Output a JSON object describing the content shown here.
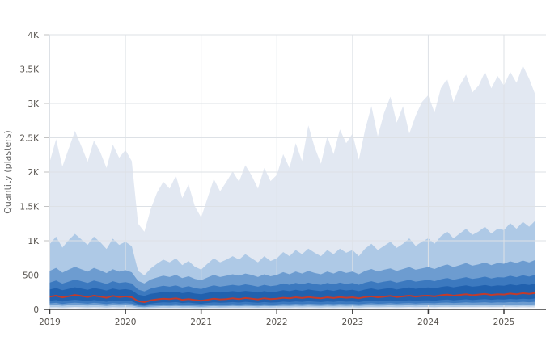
{
  "axes": {
    "y_title": "Quantity (plasters)",
    "y_ticks": [
      "4K",
      "3.5K",
      "3K",
      "2.5K",
      "2K",
      "1.5K",
      "1K",
      "500",
      "0"
    ],
    "y_tick_values": [
      4000,
      3500,
      3000,
      2500,
      2000,
      1500,
      1000,
      500,
      0
    ],
    "x_ticks": [
      "2019",
      "2020",
      "2021",
      "2022",
      "2023",
      "2024",
      "2025"
    ],
    "x_tick_values": [
      2019,
      2020,
      2021,
      2022,
      2023,
      2024,
      2025
    ]
  },
  "colors": {
    "band_outer": "#e2e8f2",
    "band_2": "#aec9e6",
    "band_3": "#6d9cd0",
    "band_4": "#3c79bf",
    "band_inner": "#2161ae",
    "median": "#c23b2c",
    "gridline": "#dde1e6",
    "axis": "#3a3a3a",
    "tick_text": "#55514c",
    "axis_title_text": "#666666"
  },
  "chart_data": {
    "type": "area",
    "title": "",
    "xlabel": "",
    "ylabel": "Quantity (plasters)",
    "ylim": [
      0,
      4000
    ],
    "x_range": {
      "start": "2019-01",
      "end": "2025-06",
      "step": "monthly",
      "count": 78
    },
    "legend": "none",
    "grid": true,
    "series": [
      {
        "name": "band-outer",
        "kind": "band",
        "layer": "back",
        "color": "#e2e8f2",
        "top": [
          2150,
          2480,
          2080,
          2340,
          2600,
          2380,
          2150,
          2460,
          2290,
          2060,
          2400,
          2210,
          2320,
          2160,
          1250,
          1130,
          1460,
          1700,
          1860,
          1760,
          1950,
          1620,
          1820,
          1500,
          1340,
          1620,
          1900,
          1720,
          1860,
          2010,
          1860,
          2100,
          1950,
          1760,
          2060,
          1870,
          1960,
          2260,
          2060,
          2420,
          2160,
          2680,
          2360,
          2120,
          2520,
          2260,
          2620,
          2420,
          2560,
          2180,
          2620,
          2960,
          2520,
          2860,
          3100,
          2720,
          2960,
          2560,
          2820,
          3020,
          3120,
          2870,
          3220,
          3360,
          3020,
          3260,
          3420,
          3160,
          3260,
          3460,
          3220,
          3400,
          3260,
          3460,
          3300,
          3550,
          3360,
          3120
        ],
        "bottom": [
          12,
          15,
          10,
          14,
          18,
          13,
          11,
          16,
          12,
          9,
          15,
          11,
          13,
          11,
          6,
          5,
          8,
          10,
          11,
          10,
          12,
          9,
          11,
          8,
          7,
          9,
          11,
          10,
          11,
          12,
          11,
          13,
          12,
          10,
          12,
          11,
          11,
          13,
          12,
          14,
          12,
          15,
          13,
          12,
          14,
          12,
          15,
          13,
          14,
          12,
          15,
          16,
          14,
          15,
          17,
          15,
          16,
          18,
          15,
          17,
          18,
          16,
          19,
          20,
          18,
          19,
          21,
          19,
          20,
          22,
          19,
          21,
          20,
          22,
          21,
          23,
          21,
          24
        ]
      },
      {
        "name": "band-2",
        "kind": "band",
        "layer": "back",
        "color": "#aec9e6",
        "top": [
          950,
          1060,
          900,
          1010,
          1100,
          1020,
          940,
          1060,
          980,
          880,
          1030,
          940,
          985,
          920,
          560,
          495,
          595,
          665,
          725,
          685,
          745,
          645,
          705,
          620,
          580,
          665,
          745,
          685,
          725,
          775,
          725,
          805,
          745,
          685,
          775,
          705,
          745,
          835,
          775,
          865,
          805,
          885,
          825,
          775,
          865,
          805,
          885,
          825,
          865,
          775,
          885,
          955,
          865,
          925,
          985,
          895,
          955,
          1035,
          925,
          985,
          1035,
          955,
          1065,
          1135,
          1035,
          1105,
          1175,
          1085,
          1135,
          1205,
          1105,
          1175,
          1155,
          1255,
          1175,
          1275,
          1205,
          1295
        ],
        "bottom": [
          30,
          33,
          28,
          31,
          35,
          32,
          29,
          33,
          30,
          27,
          32,
          29,
          31,
          29,
          19,
          17,
          21,
          23,
          25,
          24,
          26,
          22,
          24,
          21,
          20,
          23,
          25,
          24,
          25,
          27,
          25,
          28,
          26,
          24,
          27,
          25,
          26,
          28,
          27,
          30,
          28,
          31,
          29,
          27,
          30,
          28,
          31,
          29,
          30,
          27,
          31,
          33,
          30,
          32,
          34,
          31,
          33,
          35,
          32,
          34,
          35,
          33,
          36,
          38,
          35,
          37,
          39,
          36,
          38,
          40,
          37,
          39,
          38,
          41,
          39,
          42,
          40,
          43
        ]
      },
      {
        "name": "band-3",
        "kind": "band",
        "layer": "front",
        "color": "#6d9cd0",
        "top": [
          560,
          605,
          535,
          580,
          620,
          585,
          550,
          605,
          570,
          528,
          585,
          550,
          572,
          540,
          415,
          378,
          435,
          465,
          492,
          472,
          502,
          455,
          482,
          443,
          425,
          465,
          502,
          472,
          492,
          512,
          492,
          522,
          502,
          472,
          512,
          482,
          502,
          542,
          512,
          552,
          522,
          560,
          530,
          512,
          552,
          522,
          560,
          530,
          552,
          512,
          560,
          588,
          552,
          578,
          598,
          560,
          588,
          616,
          578,
          598,
          616,
          588,
          626,
          655,
          616,
          645,
          675,
          636,
          655,
          683,
          645,
          675,
          665,
          700,
          675,
          712,
          683,
          722
        ],
        "bottom": [
          58,
          63,
          53,
          60,
          65,
          60,
          55,
          63,
          58,
          51,
          60,
          55,
          59,
          55,
          36,
          32,
          40,
          44,
          48,
          46,
          49,
          43,
          46,
          42,
          38,
          43,
          48,
          45,
          46,
          49,
          46,
          51,
          48,
          45,
          49,
          46,
          48,
          52,
          49,
          54,
          51,
          55,
          52,
          49,
          54,
          51,
          55,
          52,
          54,
          49,
          55,
          58,
          54,
          57,
          60,
          55,
          58,
          61,
          57,
          60,
          61,
          58,
          63,
          66,
          61,
          64,
          68,
          63,
          66,
          69,
          64,
          68,
          66,
          70,
          68,
          72,
          69,
          73
        ]
      },
      {
        "name": "band-4",
        "kind": "band",
        "layer": "front",
        "color": "#3c79bf",
        "top": [
          390,
          420,
          375,
          405,
          435,
          410,
          385,
          420,
          398,
          370,
          410,
          385,
          398,
          378,
          290,
          262,
          303,
          325,
          345,
          330,
          350,
          318,
          338,
          310,
          298,
          325,
          350,
          330,
          345,
          358,
          345,
          365,
          350,
          330,
          358,
          338,
          350,
          378,
          358,
          385,
          365,
          390,
          370,
          358,
          385,
          365,
          390,
          370,
          385,
          358,
          390,
          410,
          385,
          405,
          418,
          390,
          410,
          430,
          405,
          418,
          430,
          410,
          438,
          458,
          430,
          450,
          470,
          445,
          458,
          478,
          450,
          470,
          465,
          490,
          470,
          498,
          478,
          505
        ],
        "bottom": [
          88,
          95,
          80,
          91,
          98,
          91,
          84,
          95,
          88,
          78,
          91,
          84,
          90,
          83,
          55,
          48,
          60,
          67,
          72,
          70,
          75,
          65,
          70,
          63,
          57,
          65,
          72,
          68,
          70,
          75,
          70,
          77,
          72,
          68,
          75,
          70,
          72,
          79,
          75,
          82,
          77,
          84,
          79,
          75,
          82,
          77,
          84,
          79,
          82,
          75,
          84,
          89,
          82,
          86,
          91,
          84,
          89,
          93,
          86,
          91,
          93,
          89,
          96,
          100,
          93,
          98,
          103,
          96,
          100,
          105,
          98,
          103,
          100,
          107,
          103,
          110,
          105,
          112
        ]
      },
      {
        "name": "band-inner",
        "kind": "band",
        "layer": "front",
        "color": "#2161ae",
        "top": [
          290,
          312,
          280,
          300,
          322,
          305,
          285,
          312,
          295,
          275,
          305,
          285,
          295,
          280,
          215,
          196,
          226,
          240,
          256,
          246,
          260,
          236,
          250,
          230,
          220,
          240,
          260,
          246,
          256,
          266,
          256,
          270,
          260,
          246,
          266,
          250,
          260,
          280,
          266,
          286,
          270,
          290,
          276,
          266,
          286,
          270,
          290,
          276,
          286,
          266,
          290,
          306,
          286,
          300,
          312,
          290,
          306,
          320,
          300,
          312,
          320,
          306,
          326,
          340,
          320,
          336,
          350,
          330,
          340,
          356,
          336,
          350,
          345,
          365,
          350,
          370,
          356,
          376
        ],
        "bottom": [
          125,
          135,
          115,
          130,
          140,
          130,
          120,
          135,
          125,
          112,
          130,
          120,
          128,
          118,
          78,
          68,
          85,
          95,
          103,
          100,
          107,
          93,
          100,
          90,
          82,
          93,
          103,
          97,
          100,
          107,
          100,
          110,
          103,
          97,
          107,
          100,
          103,
          113,
          107,
          117,
          110,
          120,
          113,
          107,
          117,
          110,
          120,
          113,
          117,
          107,
          120,
          127,
          117,
          123,
          130,
          120,
          127,
          133,
          123,
          130,
          133,
          127,
          137,
          143,
          133,
          140,
          147,
          137,
          143,
          150,
          140,
          147,
          143,
          153,
          147,
          157,
          150,
          160
        ]
      },
      {
        "name": "median",
        "kind": "line",
        "layer": "top",
        "color": "#c23b2c",
        "values": [
          185,
          200,
          175,
          192,
          210,
          195,
          180,
          200,
          186,
          170,
          196,
          180,
          190,
          176,
          120,
          106,
          132,
          146,
          156,
          150,
          162,
          140,
          150,
          136,
          126,
          140,
          156,
          146,
          150,
          162,
          150,
          166,
          156,
          146,
          162,
          150,
          156,
          170,
          162,
          176,
          166,
          180,
          170,
          162,
          176,
          166,
          180,
          170,
          176,
          162,
          180,
          190,
          176,
          186,
          196,
          180,
          190,
          200,
          186,
          196,
          200,
          190,
          206,
          216,
          200,
          210,
          220,
          206,
          216,
          226,
          210,
          220,
          216,
          230,
          220,
          236,
          226,
          240
        ]
      }
    ]
  }
}
